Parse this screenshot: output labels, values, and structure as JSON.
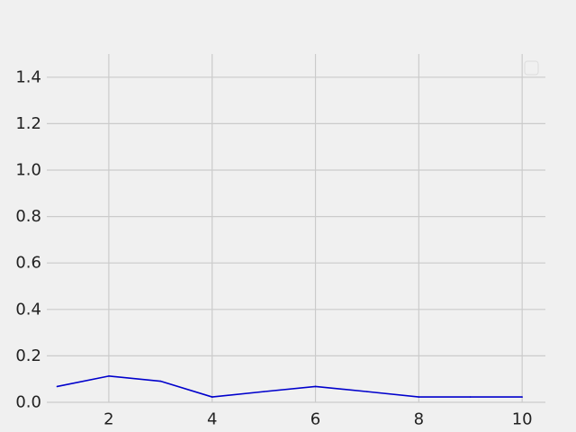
{
  "chart_data": {
    "type": "line",
    "title": "",
    "xlabel": "",
    "ylabel": "",
    "xlim": [
      0.8,
      10.45
    ],
    "ylim": [
      0,
      1.5
    ],
    "x_ticks": [
      2,
      4,
      6,
      8,
      10
    ],
    "y_ticks": [
      0.0,
      0.2,
      0.4,
      0.6,
      0.8,
      1.0,
      1.2,
      1.4
    ],
    "grid": true,
    "legend": "top-right",
    "colors": {
      "background": "#f0f0f0",
      "grid": "#cbcbcb",
      "line": "#0000cc"
    },
    "series": [
      {
        "x": [
          1,
          2,
          3,
          4,
          5,
          6,
          7,
          8,
          9,
          10
        ],
        "y": [
          0.068,
          0.113,
          0.091,
          0.023,
          0.046,
          0.068,
          0.046,
          0.023,
          0.023,
          0.023
        ]
      }
    ]
  }
}
